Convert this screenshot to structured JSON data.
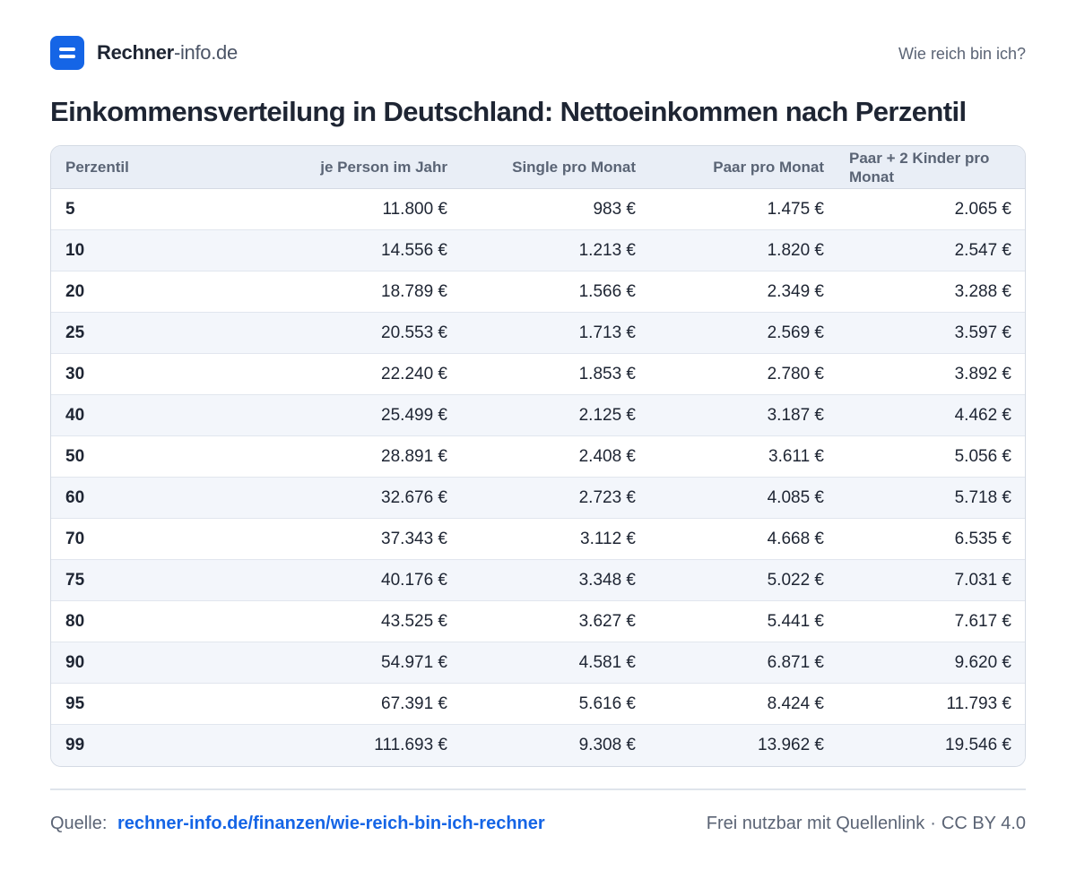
{
  "header": {
    "brand_strong": "Rechner",
    "brand_light": "-info.de",
    "link": "Wie reich bin ich?"
  },
  "title": "Einkommensverteilung in Deutschland: Nettoeinkommen nach Perzentil",
  "table": {
    "columns": [
      "Perzentil",
      "je Person im Jahr",
      "Single pro Monat",
      "Paar pro Monat",
      "Paar + 2 Kinder pro Monat"
    ],
    "rows": [
      [
        "5",
        "11.800 €",
        "983 €",
        "1.475 €",
        "2.065 €"
      ],
      [
        "10",
        "14.556 €",
        "1.213 €",
        "1.820 €",
        "2.547 €"
      ],
      [
        "20",
        "18.789 €",
        "1.566 €",
        "2.349 €",
        "3.288 €"
      ],
      [
        "25",
        "20.553 €",
        "1.713 €",
        "2.569 €",
        "3.597 €"
      ],
      [
        "30",
        "22.240 €",
        "1.853 €",
        "2.780 €",
        "3.892 €"
      ],
      [
        "40",
        "25.499 €",
        "2.125 €",
        "3.187 €",
        "4.462 €"
      ],
      [
        "50",
        "28.891 €",
        "2.408 €",
        "3.611 €",
        "5.056 €"
      ],
      [
        "60",
        "32.676 €",
        "2.723 €",
        "4.085 €",
        "5.718 €"
      ],
      [
        "70",
        "37.343 €",
        "3.112 €",
        "4.668 €",
        "6.535 €"
      ],
      [
        "75",
        "40.176 €",
        "3.348 €",
        "5.022 €",
        "7.031 €"
      ],
      [
        "80",
        "43.525 €",
        "3.627 €",
        "5.441 €",
        "7.617 €"
      ],
      [
        "90",
        "54.971 €",
        "4.581 €",
        "6.871 €",
        "9.620 €"
      ],
      [
        "95",
        "67.391 €",
        "5.616 €",
        "8.424 €",
        "11.793 €"
      ],
      [
        "99",
        "111.693 €",
        "9.308 €",
        "13.962 €",
        "19.546 €"
      ]
    ]
  },
  "footer": {
    "source_label": "Quelle:",
    "source_link": "rechner-info.de/finanzen/wie-reich-bin-ich-rechner",
    "license_text": "Frei nutzbar mit Quellenlink",
    "separator": "·",
    "license": "CC BY 4.0"
  },
  "colors": {
    "accent": "#1565e6",
    "header_bg": "#e9eef6",
    "row_alt_bg": "#f3f6fb",
    "text": "#1e2533",
    "muted": "#5b6475"
  },
  "icons": {
    "logo": "equals-icon"
  }
}
